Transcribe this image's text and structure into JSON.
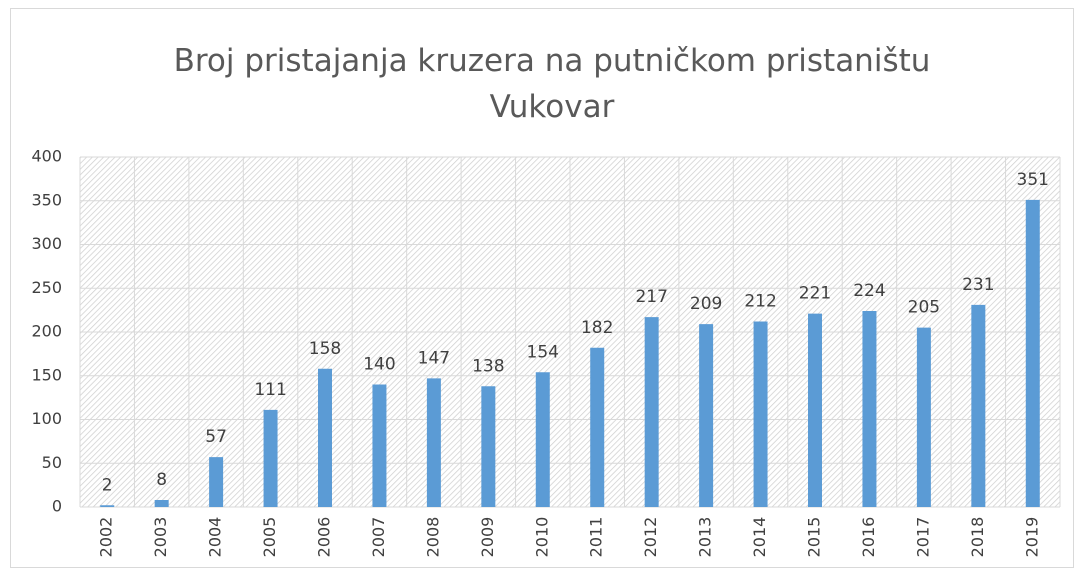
{
  "chart_data": {
    "type": "bar",
    "title": "Broj pristajanja kruzera na putničkom pristaništu Vukovar",
    "categories": [
      "2002",
      "2003",
      "2004",
      "2005",
      "2006",
      "2007",
      "2008",
      "2009",
      "2010",
      "2011",
      "2012",
      "2013",
      "2014",
      "2015",
      "2016",
      "2017",
      "2018",
      "2019"
    ],
    "values": [
      2,
      8,
      57,
      111,
      158,
      140,
      147,
      138,
      154,
      182,
      217,
      209,
      212,
      221,
      224,
      205,
      231,
      351
    ],
    "color": "#5b9bd5",
    "ylim": [
      0,
      400
    ],
    "yticks": [
      0,
      50,
      100,
      150,
      200,
      250,
      300,
      350,
      400
    ],
    "grid": true
  }
}
